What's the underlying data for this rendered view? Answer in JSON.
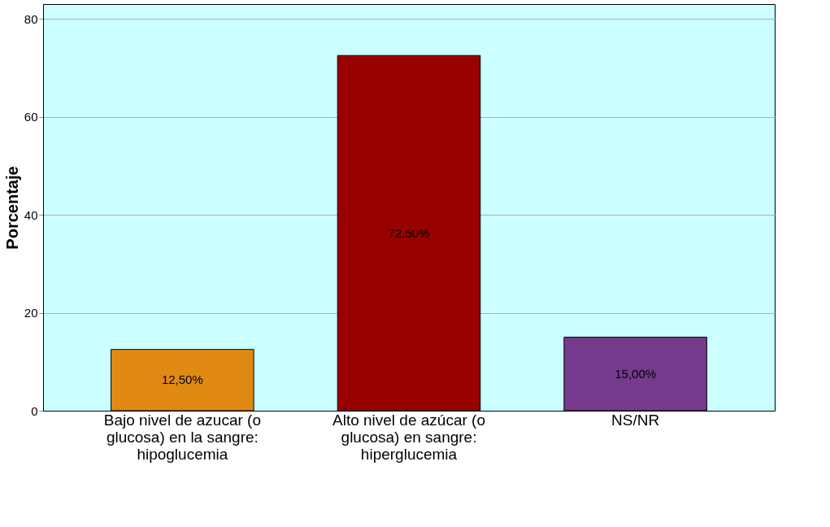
{
  "chart_data": {
    "type": "bar",
    "ylabel": "Porcentaje",
    "categories": [
      "Bajo nivel de azucar (o glucosa) en la sangre: hipoglucemia",
      "Alto nivel de azúcar (o glucosa) en sangre: hiperglucemia",
      "NS/NR"
    ],
    "values": [
      12.5,
      72.5,
      15.0
    ],
    "colors": [
      "#e08a14",
      "#990000",
      "#763a8c"
    ],
    "value_labels": [
      "12,50%",
      "72,50%",
      "15,00%"
    ],
    "ylim": [
      0,
      83
    ],
    "yticks": [
      0,
      20,
      40,
      60,
      80
    ],
    "grid": "y"
  }
}
